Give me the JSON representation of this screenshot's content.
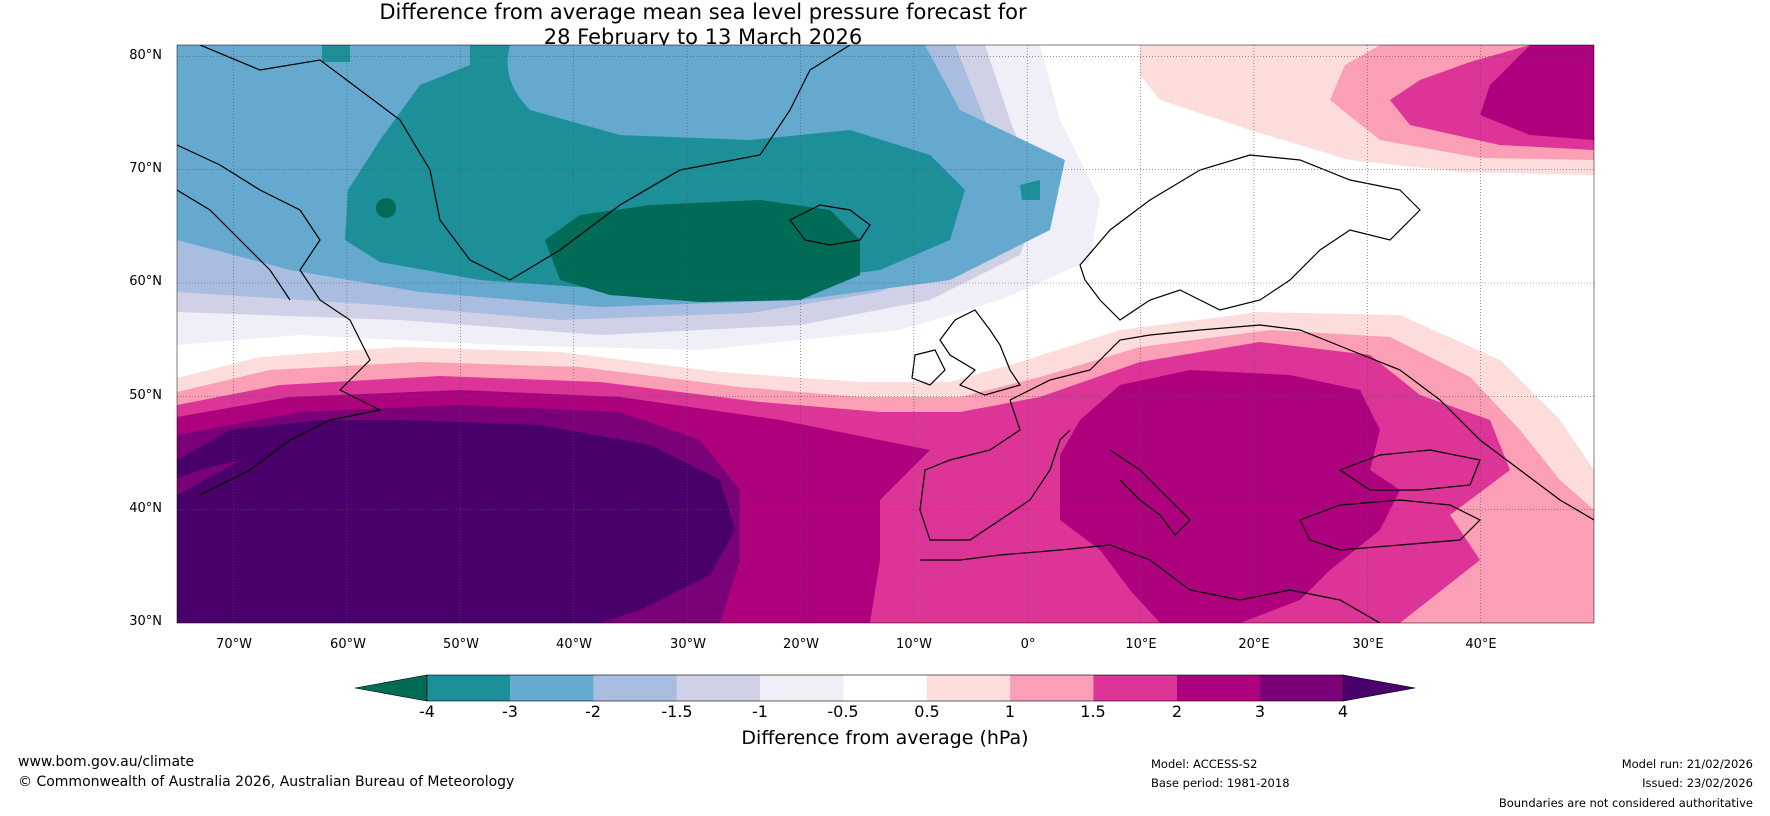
{
  "chart_data": {
    "type": "map",
    "title_line1": "Difference from average mean sea level pressure forecast for",
    "title_line2": "28 February to 13 March 2026",
    "lat_labels": [
      "80°N",
      "70°N",
      "60°N",
      "50°N",
      "40°N",
      "30°N"
    ],
    "lat_values": [
      80,
      70,
      60,
      50,
      40,
      30
    ],
    "lon_labels": [
      "70°W",
      "60°W",
      "50°W",
      "40°W",
      "30°W",
      "20°W",
      "10°W",
      "0°",
      "10°E",
      "20°E",
      "30°E",
      "40°E"
    ],
    "lon_values": [
      -70,
      -60,
      -50,
      -40,
      -30,
      -20,
      -10,
      0,
      10,
      20,
      30,
      40
    ],
    "lon_range": [
      -75,
      50
    ],
    "lat_range": [
      30,
      81
    ],
    "colorbar": {
      "label": "Difference from average (hPa)",
      "ticks": [
        "-4",
        "-3",
        "-2",
        "-1.5",
        "-1",
        "-0.5",
        "0.5",
        "1",
        "1.5",
        "2",
        "3",
        "4"
      ],
      "colors": [
        "#006b56",
        "#1c8f99",
        "#65a9cf",
        "#a9bde0",
        "#d0d1e6",
        "#f0eef6",
        "#ffffff",
        "#fddcdc",
        "#fa9fb5",
        "#dd3497",
        "#ae017e",
        "#7a0177",
        "#49006a"
      ]
    }
  },
  "footer": {
    "website": "www.bom.gov.au/climate",
    "copyright": "© Commonwealth of Australia 2026, Australian Bureau of Meteorology",
    "model": "Model: ACCESS-S2",
    "base_period": "Base period: 1981-2018",
    "model_run": "Model run: 21/02/2026",
    "issued": "Issued: 23/02/2026",
    "disclaimer": "Boundaries are not considered authoritative"
  }
}
